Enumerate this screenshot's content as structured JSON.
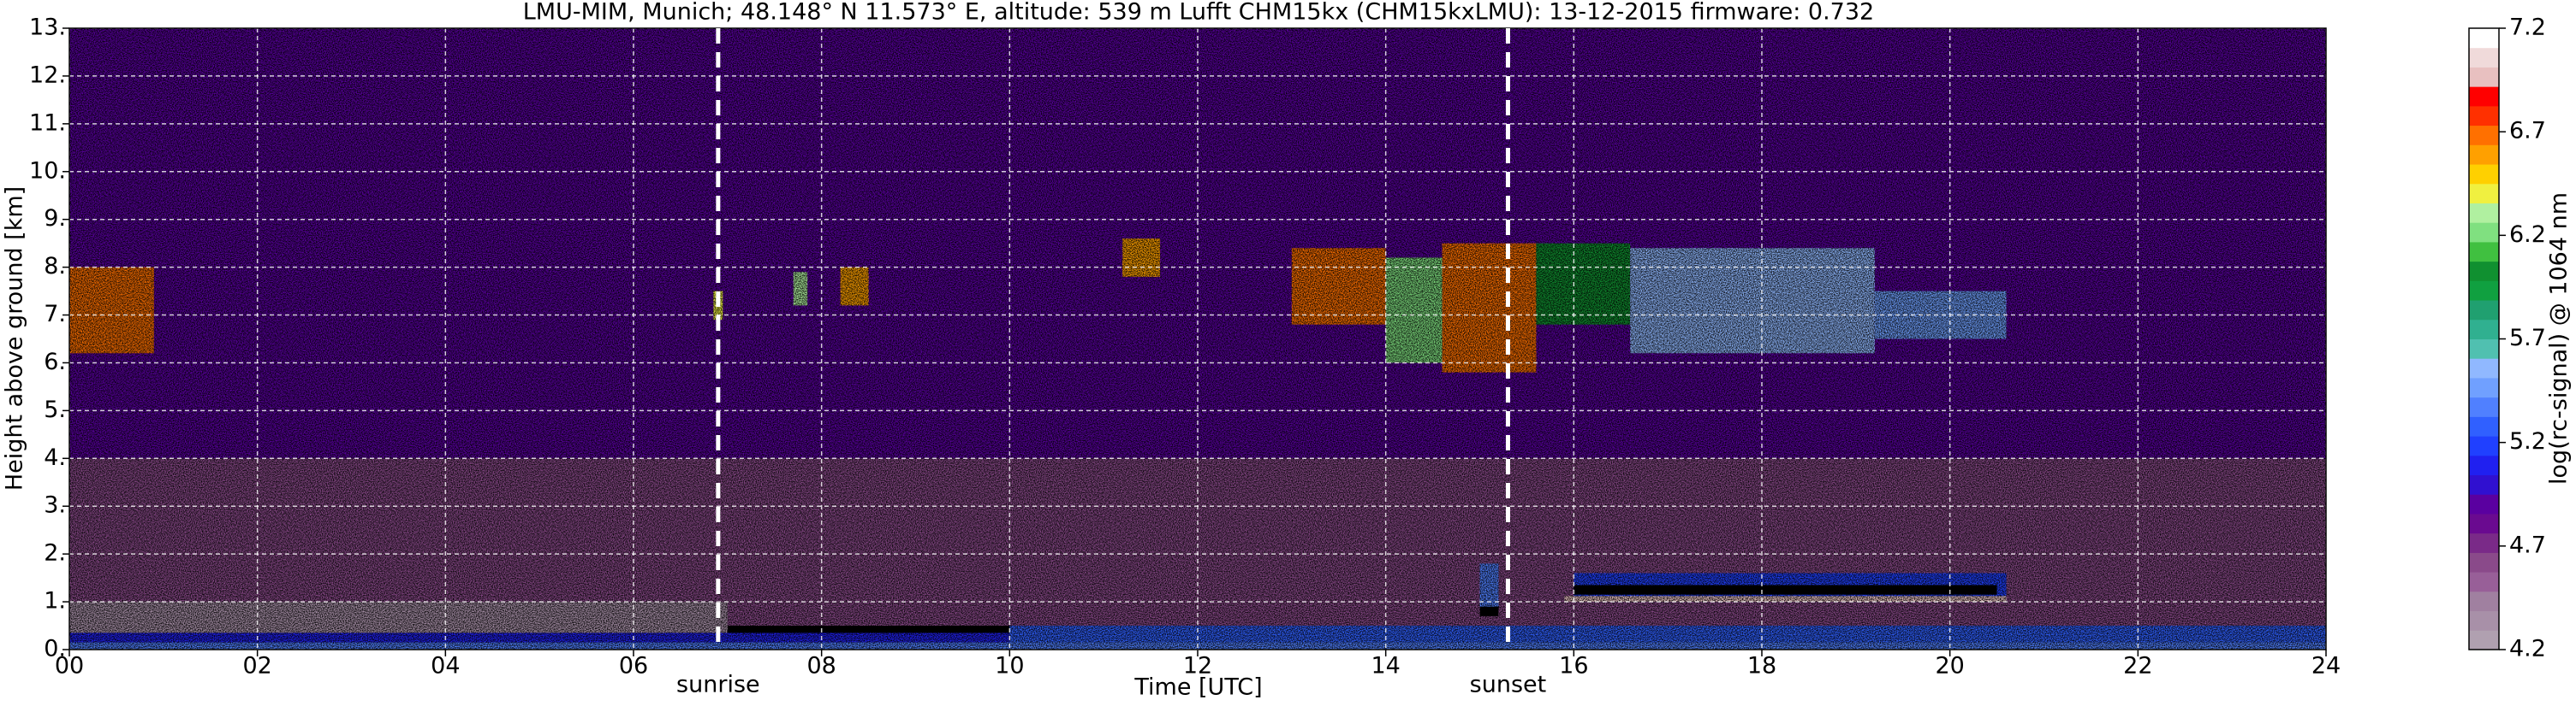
{
  "chart_data": {
    "type": "heatmap",
    "title": "LMU-MIM, Munich; 48.148° N 11.573° E, altitude: 539 m    Lufft CHM15kx (CHM15kxLMU): 13-12-2015    firmware: 0.732",
    "x_label": "Time [UTC]",
    "y_label": "Height above ground [km]",
    "colorbar_label": "log(rc-signal) @ 1064 nm",
    "xlim": [
      0,
      24
    ],
    "ylim": [
      0,
      13
    ],
    "clim": [
      4.2,
      7.2
    ],
    "xticks": [
      {
        "value": 0,
        "label": "00"
      },
      {
        "value": 2,
        "label": "02"
      },
      {
        "value": 4,
        "label": "04"
      },
      {
        "value": 6,
        "label": "06"
      },
      {
        "value": 8,
        "label": "08"
      },
      {
        "value": 10,
        "label": "10"
      },
      {
        "value": 12,
        "label": "12"
      },
      {
        "value": 14,
        "label": "14"
      },
      {
        "value": 16,
        "label": "16"
      },
      {
        "value": 18,
        "label": "18"
      },
      {
        "value": 20,
        "label": "20"
      },
      {
        "value": 22,
        "label": "22"
      },
      {
        "value": 24,
        "label": "24"
      }
    ],
    "yticks": [
      {
        "value": 0,
        "label": "0."
      },
      {
        "value": 1,
        "label": "1."
      },
      {
        "value": 2,
        "label": "2."
      },
      {
        "value": 3,
        "label": "3."
      },
      {
        "value": 4,
        "label": "4."
      },
      {
        "value": 5,
        "label": "5."
      },
      {
        "value": 6,
        "label": "6."
      },
      {
        "value": 7,
        "label": "7."
      },
      {
        "value": 8,
        "label": "8."
      },
      {
        "value": 9,
        "label": "9."
      },
      {
        "value": 10,
        "label": "10."
      },
      {
        "value": 11,
        "label": "11."
      },
      {
        "value": 12,
        "label": "12."
      },
      {
        "value": 13,
        "label": "13."
      }
    ],
    "cticks": [
      4.2,
      4.7,
      5.2,
      5.7,
      6.2,
      6.7,
      7.2
    ],
    "grid": true,
    "colormap": [
      "#b0a0b0",
      "#a890a8",
      "#a080a0",
      "#985f98",
      "#8a4a8a",
      "#7a2a88",
      "#6a0a90",
      "#5a00a0",
      "#3010d0",
      "#2020f0",
      "#2040ff",
      "#3060ff",
      "#5080ff",
      "#70a0ff",
      "#90b8ff",
      "#50c0b0",
      "#30b090",
      "#20a070",
      "#10a040",
      "#109030",
      "#40c040",
      "#80e080",
      "#b0f0a0",
      "#f0f040",
      "#ffd000",
      "#ffa000",
      "#ff7000",
      "#ff3000",
      "#ff0000",
      "#e8c0c0",
      "#f0dada",
      "#ffffff"
    ],
    "layers": [
      {
        "x": [
          0,
          24
        ],
        "height": [
          4,
          13
        ],
        "value": 4.9
      },
      {
        "x": [
          0,
          24
        ],
        "height": [
          1,
          4
        ],
        "value": 4.6
      },
      {
        "x": [
          0,
          7
        ],
        "height": [
          0.35,
          1.0
        ],
        "value": 4.3
      },
      {
        "x": [
          7,
          24
        ],
        "height": [
          0.5,
          1.0
        ],
        "value": 4.6
      },
      {
        "x": [
          0,
          10
        ],
        "height": [
          0.15,
          0.35
        ],
        "value": 5.1
      },
      {
        "x": [
          10,
          24
        ],
        "height": [
          0.15,
          0.5
        ],
        "value": 5.3
      },
      {
        "x": [
          0,
          24
        ],
        "height": [
          0,
          0.15
        ],
        "value": 5.4
      },
      {
        "x": [
          15.0,
          15.2
        ],
        "height": [
          0.8,
          1.8
        ],
        "value": 5.4
      },
      {
        "x": [
          16.0,
          20.6
        ],
        "height": [
          1.0,
          1.6
        ],
        "value": 5.2
      },
      {
        "x": [
          15.9,
          20.6
        ],
        "height": [
          1.0,
          1.12
        ],
        "value": 7.0
      },
      {
        "x": [
          0,
          0.9
        ],
        "height": [
          6.2,
          8.0
        ],
        "value": 6.7
      },
      {
        "x": [
          6.85,
          6.95
        ],
        "height": [
          6.9,
          7.5
        ],
        "value": 6.4
      },
      {
        "x": [
          7.7,
          7.85
        ],
        "height": [
          7.2,
          7.9
        ],
        "value": 6.3
      },
      {
        "x": [
          8.2,
          8.5
        ],
        "height": [
          7.2,
          8.0
        ],
        "value": 6.6
      },
      {
        "x": [
          11.2,
          11.6
        ],
        "height": [
          7.8,
          8.6
        ],
        "value": 6.6
      },
      {
        "x": [
          13.0,
          14.0
        ],
        "height": [
          6.8,
          8.4
        ],
        "value": 6.7
      },
      {
        "x": [
          14.0,
          14.6
        ],
        "height": [
          6.0,
          8.2
        ],
        "value": 6.2
      },
      {
        "x": [
          14.6,
          15.6
        ],
        "height": [
          5.8,
          8.5
        ],
        "value": 6.7
      },
      {
        "x": [
          15.6,
          16.6
        ],
        "height": [
          6.8,
          8.5
        ],
        "value": 6.0
      },
      {
        "x": [
          16.6,
          19.2
        ],
        "height": [
          6.2,
          8.4
        ],
        "value": 5.6
      },
      {
        "x": [
          19.2,
          20.6
        ],
        "height": [
          6.5,
          7.5
        ],
        "value": 5.5
      }
    ],
    "cloud_base": [
      {
        "x": [
          15.0,
          15.2
        ],
        "height": [
          0.7,
          0.9
        ],
        "color": "#000000"
      },
      {
        "x": [
          16.0,
          20.5
        ],
        "height": [
          1.15,
          1.35
        ],
        "color": "#000000"
      }
    ],
    "annotations": [
      {
        "text": "sunrise",
        "x": 6.9
      },
      {
        "text": "sunset",
        "x": 15.3
      }
    ]
  }
}
